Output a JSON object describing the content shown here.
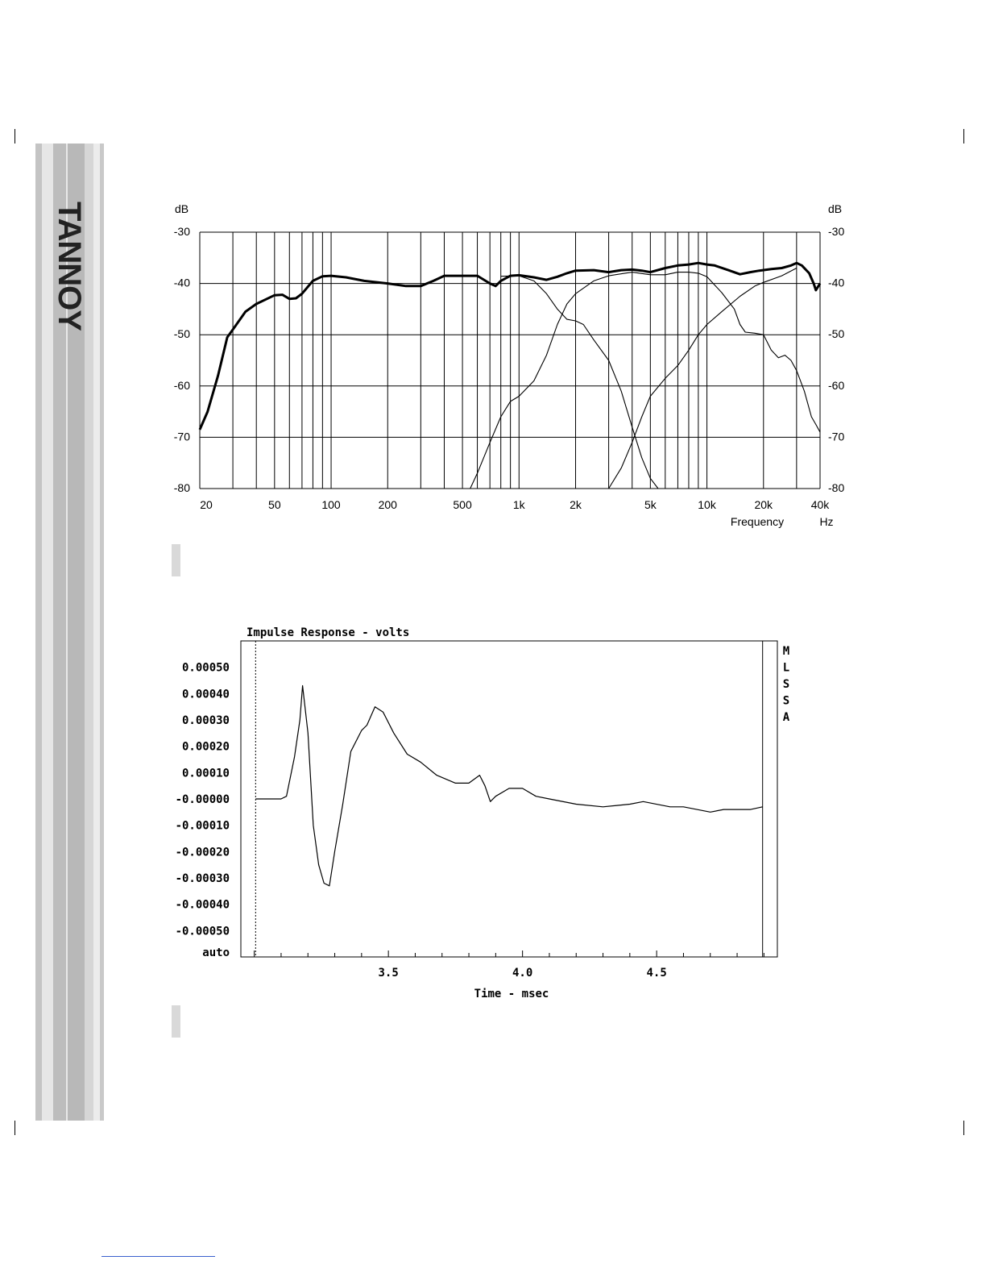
{
  "brand": {
    "logo_text": "TANNOY"
  },
  "chart_data": [
    {
      "type": "line",
      "ylabel_left": "dB",
      "ylabel_right": "dB",
      "xlabel": "Frequency",
      "xunit": "Hz",
      "x_scale": "log",
      "xlim": [
        20,
        40000
      ],
      "ylim": [
        -80,
        -30
      ],
      "x_tick_values": [
        20,
        50,
        100,
        200,
        500,
        1000,
        2000,
        5000,
        10000,
        20000,
        40000
      ],
      "x_tick_labels": [
        "20",
        "50",
        "100",
        "200",
        "500",
        "1k",
        "2k",
        "5k",
        "10k",
        "20k",
        "40k"
      ],
      "y_tick_values": [
        -30,
        -40,
        -50,
        -60,
        -70,
        -80
      ],
      "y_tick_labels": [
        "-30",
        "-40",
        "-50",
        "-60",
        "-70",
        "-80"
      ],
      "grid": true,
      "series": [
        {
          "style": "bold",
          "points": [
            [
              20,
              -68.5
            ],
            [
              22,
              -65
            ],
            [
              25,
              -58
            ],
            [
              28,
              -50.5
            ],
            [
              30,
              -49
            ],
            [
              35,
              -45.5
            ],
            [
              40,
              -44
            ],
            [
              50,
              -42.3
            ],
            [
              55,
              -42.2
            ],
            [
              60,
              -43
            ],
            [
              65,
              -42.9
            ],
            [
              70,
              -42
            ],
            [
              80,
              -39.5
            ],
            [
              90,
              -38.6
            ],
            [
              100,
              -38.5
            ],
            [
              120,
              -38.8
            ],
            [
              150,
              -39.5
            ],
            [
              200,
              -40
            ],
            [
              250,
              -40.5
            ],
            [
              300,
              -40.5
            ],
            [
              350,
              -39.5
            ],
            [
              400,
              -38.5
            ],
            [
              500,
              -38.5
            ],
            [
              600,
              -38.5
            ],
            [
              700,
              -40
            ],
            [
              750,
              -40.5
            ],
            [
              800,
              -39.5
            ],
            [
              900,
              -38.5
            ],
            [
              1000,
              -38.4
            ],
            [
              1200,
              -38.8
            ],
            [
              1400,
              -39.3
            ],
            [
              1600,
              -38.7
            ],
            [
              1800,
              -38
            ],
            [
              2000,
              -37.5
            ],
            [
              2500,
              -37.4
            ],
            [
              3000,
              -37.8
            ],
            [
              3500,
              -37.4
            ],
            [
              4000,
              -37.3
            ],
            [
              4500,
              -37.5
            ],
            [
              5000,
              -37.8
            ],
            [
              6000,
              -37
            ],
            [
              7000,
              -36.5
            ],
            [
              8000,
              -36.3
            ],
            [
              9000,
              -36
            ],
            [
              10000,
              -36.3
            ],
            [
              11000,
              -36.5
            ],
            [
              13000,
              -37.4
            ],
            [
              15000,
              -38.2
            ],
            [
              17000,
              -37.8
            ],
            [
              19000,
              -37.5
            ],
            [
              22000,
              -37.2
            ],
            [
              25000,
              -37
            ],
            [
              28000,
              -36.5
            ],
            [
              30000,
              -36
            ],
            [
              32000,
              -36.5
            ],
            [
              35000,
              -38
            ],
            [
              37000,
              -40
            ],
            [
              38000,
              -41.3
            ],
            [
              40000,
              -40
            ]
          ]
        },
        {
          "style": "thin",
          "points": [
            [
              550,
              -80
            ],
            [
              600,
              -77
            ],
            [
              700,
              -71
            ],
            [
              800,
              -66
            ],
            [
              900,
              -63
            ],
            [
              1000,
              -62
            ],
            [
              1200,
              -59
            ],
            [
              1400,
              -54
            ],
            [
              1600,
              -48
            ],
            [
              1800,
              -44
            ],
            [
              2000,
              -42
            ],
            [
              2500,
              -39.5
            ],
            [
              3000,
              -38.5
            ],
            [
              4000,
              -37.8
            ],
            [
              5000,
              -38.3
            ],
            [
              6000,
              -38.3
            ],
            [
              7000,
              -37.8
            ],
            [
              8000,
              -37.8
            ],
            [
              9000,
              -38
            ],
            [
              10000,
              -38.7
            ],
            [
              12000,
              -41.8
            ],
            [
              14000,
              -45
            ],
            [
              15000,
              -48
            ],
            [
              16000,
              -49.5
            ],
            [
              18000,
              -49.7
            ],
            [
              20000,
              -50
            ],
            [
              22000,
              -53
            ],
            [
              24000,
              -54.5
            ],
            [
              26000,
              -54
            ],
            [
              28000,
              -55
            ],
            [
              30000,
              -57
            ],
            [
              33000,
              -61
            ],
            [
              36000,
              -66
            ],
            [
              38000,
              -67.5
            ],
            [
              40000,
              -69
            ]
          ]
        },
        {
          "style": "thin",
          "points": [
            [
              800,
              -38.6
            ],
            [
              1000,
              -38.5
            ],
            [
              1200,
              -39.5
            ],
            [
              1400,
              -42
            ],
            [
              1600,
              -45
            ],
            [
              1800,
              -47
            ],
            [
              2000,
              -47.3
            ],
            [
              2200,
              -48
            ],
            [
              2500,
              -51
            ],
            [
              3000,
              -55
            ],
            [
              3500,
              -61
            ],
            [
              4000,
              -68
            ],
            [
              4500,
              -74
            ],
            [
              5000,
              -78
            ],
            [
              5500,
              -80
            ]
          ]
        },
        {
          "style": "thin",
          "points": [
            [
              3000,
              -80
            ],
            [
              3500,
              -76
            ],
            [
              4000,
              -71
            ],
            [
              4500,
              -66
            ],
            [
              5000,
              -62
            ],
            [
              6000,
              -58.5
            ],
            [
              7000,
              -56
            ],
            [
              8000,
              -53
            ],
            [
              9000,
              -50
            ],
            [
              10000,
              -48
            ],
            [
              12000,
              -45.5
            ],
            [
              15000,
              -42.5
            ],
            [
              18000,
              -40.5
            ],
            [
              20000,
              -39.8
            ],
            [
              25000,
              -38.5
            ],
            [
              30000,
              -37
            ]
          ]
        }
      ]
    },
    {
      "type": "line",
      "title": "Impulse Response - volts",
      "xlabel": "Time - msec",
      "xlim": [
        2.95,
        4.95
      ],
      "ylim": [
        -0.0006,
        0.0006
      ],
      "x_tick_values": [
        3.5,
        4.0,
        4.5
      ],
      "x_tick_labels": [
        "3.5",
        "4.0",
        "4.5"
      ],
      "y_tick_values": [
        0.0005,
        0.0004,
        0.0003,
        0.0002,
        0.0001,
        0.0,
        -0.0001,
        -0.0002,
        -0.0003,
        -0.0004,
        -0.0005
      ],
      "y_tick_labels": [
        "0.00050",
        "0.00040",
        "0.00030",
        "0.00020",
        "0.00010",
        "-0.00000",
        "-0.00010",
        "-0.00020",
        "-0.00030",
        "-0.00040",
        "-0.00050"
      ],
      "y_bottom_label": "auto",
      "side_label": "MLSSA",
      "dashed_marker_x": 3.005,
      "right_marker_x": 4.895,
      "series": [
        {
          "points": [
            [
              3.005,
              0.0
            ],
            [
              3.1,
              0.0
            ],
            [
              3.12,
              1e-05
            ],
            [
              3.15,
              0.00016
            ],
            [
              3.17,
              0.0003
            ],
            [
              3.18,
              0.00043
            ],
            [
              3.2,
              0.00025
            ],
            [
              3.22,
              -0.0001
            ],
            [
              3.24,
              -0.00025
            ],
            [
              3.26,
              -0.00032
            ],
            [
              3.28,
              -0.00033
            ],
            [
              3.3,
              -0.0002
            ],
            [
              3.33,
              -2e-05
            ],
            [
              3.36,
              0.00018
            ],
            [
              3.4,
              0.00026
            ],
            [
              3.42,
              0.00028
            ],
            [
              3.45,
              0.00035
            ],
            [
              3.48,
              0.00033
            ],
            [
              3.52,
              0.00025
            ],
            [
              3.57,
              0.00017
            ],
            [
              3.62,
              0.00014
            ],
            [
              3.68,
              9e-05
            ],
            [
              3.75,
              6e-05
            ],
            [
              3.8,
              6e-05
            ],
            [
              3.84,
              9e-05
            ],
            [
              3.86,
              5e-05
            ],
            [
              3.88,
              -1e-05
            ],
            [
              3.9,
              1e-05
            ],
            [
              3.95,
              4e-05
            ],
            [
              4.0,
              4e-05
            ],
            [
              4.05,
              1e-05
            ],
            [
              4.1,
              0.0
            ],
            [
              4.2,
              -2e-05
            ],
            [
              4.3,
              -3e-05
            ],
            [
              4.4,
              -2e-05
            ],
            [
              4.45,
              -1e-05
            ],
            [
              4.55,
              -3e-05
            ],
            [
              4.6,
              -3e-05
            ],
            [
              4.7,
              -5e-05
            ],
            [
              4.75,
              -4e-05
            ],
            [
              4.85,
              -4e-05
            ],
            [
              4.895,
              -3e-05
            ]
          ]
        }
      ]
    }
  ]
}
